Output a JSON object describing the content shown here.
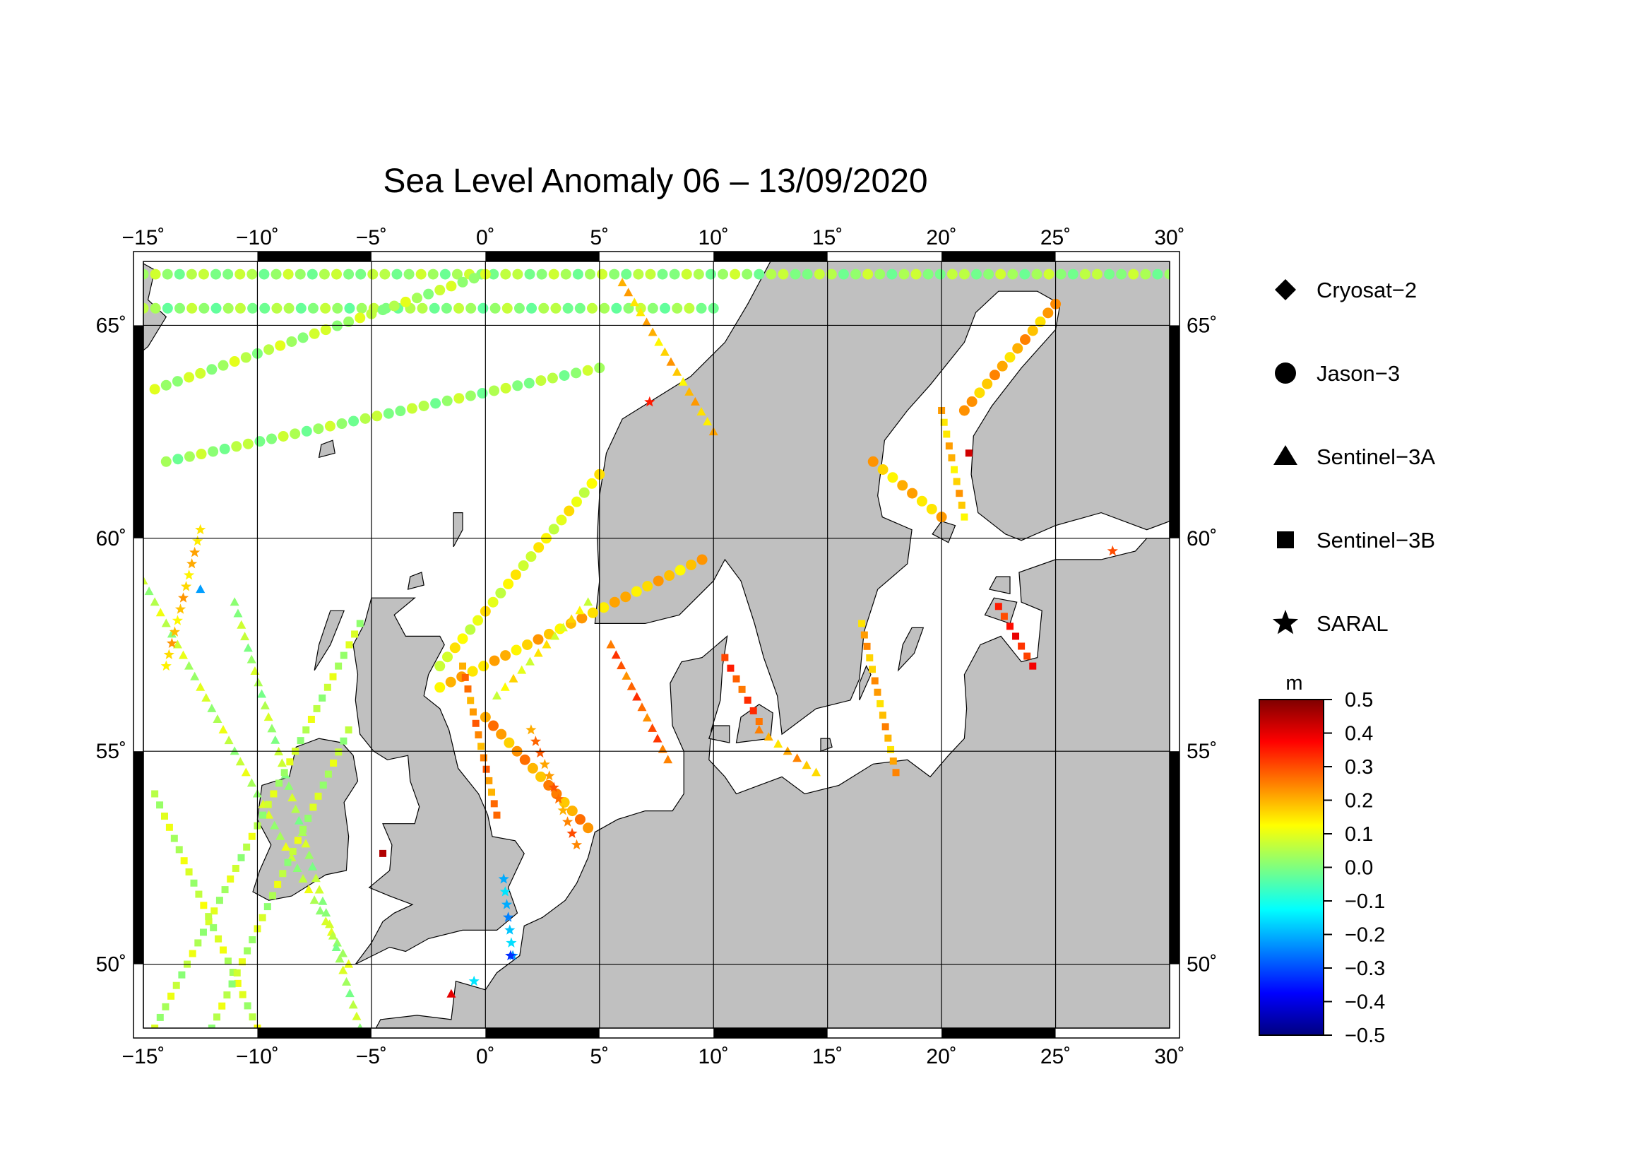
{
  "title": "Sea Level Anomaly 06 – 13/09/2020",
  "map": {
    "lon_range": [
      -15,
      30
    ],
    "lat_range": [
      48.5,
      66.5
    ],
    "lon_ticks": [
      {
        "value": -15,
        "label": "−15˚"
      },
      {
        "value": -10,
        "label": "−10˚"
      },
      {
        "value": -5,
        "label": "−5˚"
      },
      {
        "value": 0,
        "label": "0˚"
      },
      {
        "value": 5,
        "label": "5˚"
      },
      {
        "value": 10,
        "label": "10˚"
      },
      {
        "value": 15,
        "label": "15˚"
      },
      {
        "value": 20,
        "label": "20˚"
      },
      {
        "value": 25,
        "label": "25˚"
      },
      {
        "value": 30,
        "label": "30˚"
      }
    ],
    "lat_ticks": [
      {
        "value": 50,
        "label": "50˚"
      },
      {
        "value": 55,
        "label": "55˚"
      },
      {
        "value": 60,
        "label": "60˚"
      },
      {
        "value": 65,
        "label": "65˚"
      }
    ],
    "grid": true,
    "land_color": "#c0c0c0",
    "ocean_color": "#ffffff",
    "frame_style": "alternating black/white bands"
  },
  "legend": {
    "placement": "right",
    "items": [
      {
        "label": "Cryosat−2",
        "symbol": "diamond-icon"
      },
      {
        "label": "Jason−3",
        "symbol": "circle-icon"
      },
      {
        "label": "Sentinel−3A",
        "symbol": "triangle-icon"
      },
      {
        "label": "Sentinel−3B",
        "symbol": "square-icon"
      },
      {
        "label": "SARAL",
        "symbol": "star-icon"
      }
    ]
  },
  "colorbar": {
    "unit": "m",
    "range": [
      -0.5,
      0.5
    ],
    "ticks": [
      {
        "value": 0.5,
        "label": "0.5"
      },
      {
        "value": 0.4,
        "label": "0.4"
      },
      {
        "value": 0.3,
        "label": "0.3"
      },
      {
        "value": 0.2,
        "label": "0.2"
      },
      {
        "value": 0.1,
        "label": "0.1"
      },
      {
        "value": 0.0,
        "label": "0.0"
      },
      {
        "value": -0.1,
        "label": "−0.1"
      },
      {
        "value": -0.2,
        "label": "−0.2"
      },
      {
        "value": -0.3,
        "label": "−0.3"
      },
      {
        "value": -0.4,
        "label": "−0.4"
      },
      {
        "value": -0.5,
        "label": "−0.5"
      }
    ],
    "colors": [
      "#00007f",
      "#0000ff",
      "#007fff",
      "#00ffff",
      "#7fff7f",
      "#ffff00",
      "#ff7f00",
      "#ff0000",
      "#7f0000"
    ]
  },
  "chart_data": {
    "type": "scatter",
    "title": "Sea Level Anomaly 06 – 13/09/2020",
    "xlabel": "",
    "ylabel": "",
    "xlim": [
      -15,
      30
    ],
    "ylim": [
      48.5,
      66.5
    ],
    "color_value_unit": "m",
    "tracks": [
      {
        "sensor": "Jason−3",
        "marker": "circle",
        "from": [
          -15,
          66.2
        ],
        "to": [
          30,
          66.2
        ],
        "sla": 0.03
      },
      {
        "sensor": "Jason−3",
        "marker": "circle",
        "from": [
          -15,
          65.4
        ],
        "to": [
          10,
          65.4
        ],
        "sla": 0.02
      },
      {
        "sensor": "Jason−3",
        "marker": "circle",
        "from": [
          -14.5,
          63.5
        ],
        "to": [
          0,
          66.2
        ],
        "sla": 0.05
      },
      {
        "sensor": "Jason−3",
        "marker": "circle",
        "from": [
          -14,
          61.8
        ],
        "to": [
          5,
          64.0
        ],
        "sla": 0.03
      },
      {
        "sensor": "Jason−3",
        "marker": "circle",
        "from": [
          -2,
          57.0
        ],
        "to": [
          5,
          61.5
        ],
        "sla": 0.11
      },
      {
        "sensor": "Jason−3",
        "marker": "circle",
        "from": [
          -2,
          56.5
        ],
        "to": [
          9.5,
          59.5
        ],
        "sla": 0.18
      },
      {
        "sensor": "Jason−3",
        "marker": "circle",
        "from": [
          0,
          55.8
        ],
        "to": [
          4.5,
          53.2
        ],
        "sla": 0.22
      },
      {
        "sensor": "Jason−3",
        "marker": "circle",
        "from": [
          21,
          63.0
        ],
        "to": [
          25,
          65.5
        ],
        "sla": 0.2
      },
      {
        "sensor": "Jason−3",
        "marker": "circle",
        "from": [
          17,
          61.8
        ],
        "to": [
          20,
          60.5
        ],
        "sla": 0.18
      },
      {
        "sensor": "Sentinel−3A",
        "marker": "triangle",
        "from": [
          -15,
          59.0
        ],
        "to": [
          -6,
          50.0
        ],
        "sla": 0.06
      },
      {
        "sensor": "Sentinel−3A",
        "marker": "triangle",
        "from": [
          -11,
          58.5
        ],
        "to": [
          -5.5,
          48.5
        ],
        "sla": 0.04
      },
      {
        "sensor": "Sentinel−3A",
        "marker": "triangle",
        "from": [
          0.5,
          56.3
        ],
        "to": [
          4.5,
          58.5
        ],
        "sla": 0.12
      },
      {
        "sensor": "Sentinel−3A",
        "marker": "triangle",
        "from": [
          5.5,
          57.5
        ],
        "to": [
          8,
          54.8
        ],
        "sla": 0.28
      },
      {
        "sensor": "Sentinel−3A",
        "marker": "triangle",
        "from": [
          6,
          66.0
        ],
        "to": [
          10,
          62.5
        ],
        "sla": 0.18
      },
      {
        "sensor": "Sentinel−3A",
        "marker": "triangle",
        "from": [
          12,
          55.5
        ],
        "to": [
          14.5,
          54.5
        ],
        "sla": 0.2
      },
      {
        "sensor": "Sentinel−3B",
        "marker": "square",
        "from": [
          -14.5,
          48.5
        ],
        "to": [
          -5.5,
          58.0
        ],
        "sla": 0.06
      },
      {
        "sensor": "Sentinel−3B",
        "marker": "square",
        "from": [
          -14.5,
          54.0
        ],
        "to": [
          -10,
          48.5
        ],
        "sla": 0.07
      },
      {
        "sensor": "Sentinel−3B",
        "marker": "square",
        "from": [
          -12,
          48.5
        ],
        "to": [
          -6,
          55.5
        ],
        "sla": 0.06
      },
      {
        "sensor": "Sentinel−3B",
        "marker": "square",
        "from": [
          -1,
          57.0
        ],
        "to": [
          0.5,
          53.5
        ],
        "sla": 0.24
      },
      {
        "sensor": "Sentinel−3B",
        "marker": "square",
        "from": [
          10.5,
          57.2
        ],
        "to": [
          12,
          55.7
        ],
        "sla": 0.3
      },
      {
        "sensor": "Sentinel−3B",
        "marker": "square",
        "from": [
          18,
          54.5
        ],
        "to": [
          16.5,
          58.0
        ],
        "sla": 0.2
      },
      {
        "sensor": "Sentinel−3B",
        "marker": "square",
        "from": [
          20,
          63.0
        ],
        "to": [
          21,
          60.5
        ],
        "sla": 0.18
      },
      {
        "sensor": "Sentinel−3B",
        "marker": "square",
        "from": [
          22.5,
          58.4
        ],
        "to": [
          24,
          57.0
        ],
        "sla": 0.35
      },
      {
        "sensor": "SARAL",
        "marker": "star",
        "from": [
          -14,
          57.0
        ],
        "to": [
          -12.5,
          60.2
        ],
        "sla": 0.18
      },
      {
        "sensor": "SARAL",
        "marker": "star",
        "from": [
          2,
          55.5
        ],
        "to": [
          4,
          52.8
        ],
        "sla": 0.25
      },
      {
        "sensor": "SARAL",
        "marker": "star",
        "from": [
          0.8,
          52.0
        ],
        "to": [
          1.2,
          50.2
        ],
        "sla": -0.2
      }
    ],
    "points": [
      {
        "sensor": "Sentinel−3A",
        "marker": "triangle",
        "lon": -12.5,
        "lat": 58.8,
        "sla": -0.22
      },
      {
        "sensor": "SARAL",
        "marker": "star",
        "lon": 1.1,
        "lat": 50.2,
        "sla": -0.33
      },
      {
        "sensor": "Sentinel−3B",
        "marker": "square",
        "lon": 21.2,
        "lat": 62.0,
        "sla": 0.42
      },
      {
        "sensor": "Sentinel−3B",
        "marker": "square",
        "lon": -4.5,
        "lat": 52.6,
        "sla": 0.45
      },
      {
        "sensor": "SARAL",
        "marker": "star",
        "lon": 27.5,
        "lat": 59.7,
        "sla": 0.3
      },
      {
        "sensor": "Sentinel−3A",
        "marker": "triangle",
        "lon": -1.5,
        "lat": 49.3,
        "sla": 0.4
      },
      {
        "sensor": "SARAL",
        "marker": "star",
        "lon": 7.2,
        "lat": 63.2,
        "sla": 0.35
      },
      {
        "sensor": "SARAL",
        "marker": "star",
        "lon": -0.5,
        "lat": 49.6,
        "sla": -0.15
      }
    ]
  }
}
